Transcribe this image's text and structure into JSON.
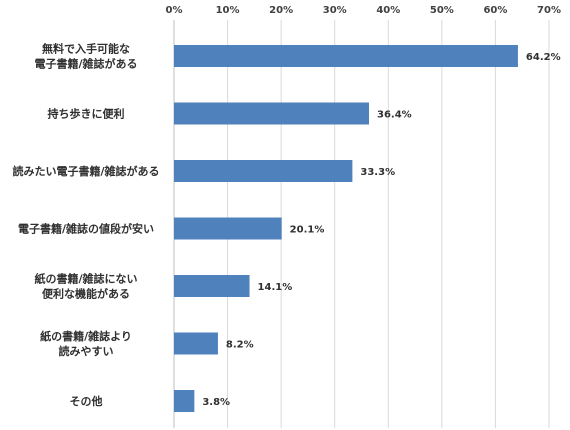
{
  "chart_data": {
    "type": "bar",
    "orientation": "horizontal",
    "categories": [
      [
        "無料で入手可能な",
        "電子書籍/雑誌がある"
      ],
      [
        "持ち歩きに便利"
      ],
      [
        "読みたい電子書籍/雑誌がある"
      ],
      [
        "電子書籍/雑誌の値段が安い"
      ],
      [
        "紙の書籍/雑誌にない",
        "便利な機能がある"
      ],
      [
        "紙の書籍/雑誌より",
        "読みやすい"
      ],
      [
        "その他"
      ]
    ],
    "values": [
      64.2,
      36.4,
      33.3,
      20.1,
      14.1,
      8.2,
      3.8
    ],
    "value_labels": [
      "64.2%",
      "36.4%",
      "33.3%",
      "20.1%",
      "14.1%",
      "8.2%",
      "3.8%"
    ],
    "xlim": [
      0,
      70
    ],
    "ticks": [
      0,
      10,
      20,
      30,
      40,
      50,
      60,
      70
    ],
    "tick_labels": [
      "0%",
      "10%",
      "20%",
      "30%",
      "40%",
      "50%",
      "60%",
      "70%"
    ],
    "axis_position": "top",
    "grid": true,
    "legend": "none",
    "colors": {
      "bar": "#4F81BD",
      "grid": "#D9D9D9",
      "axis": "#BFBFBF"
    }
  }
}
